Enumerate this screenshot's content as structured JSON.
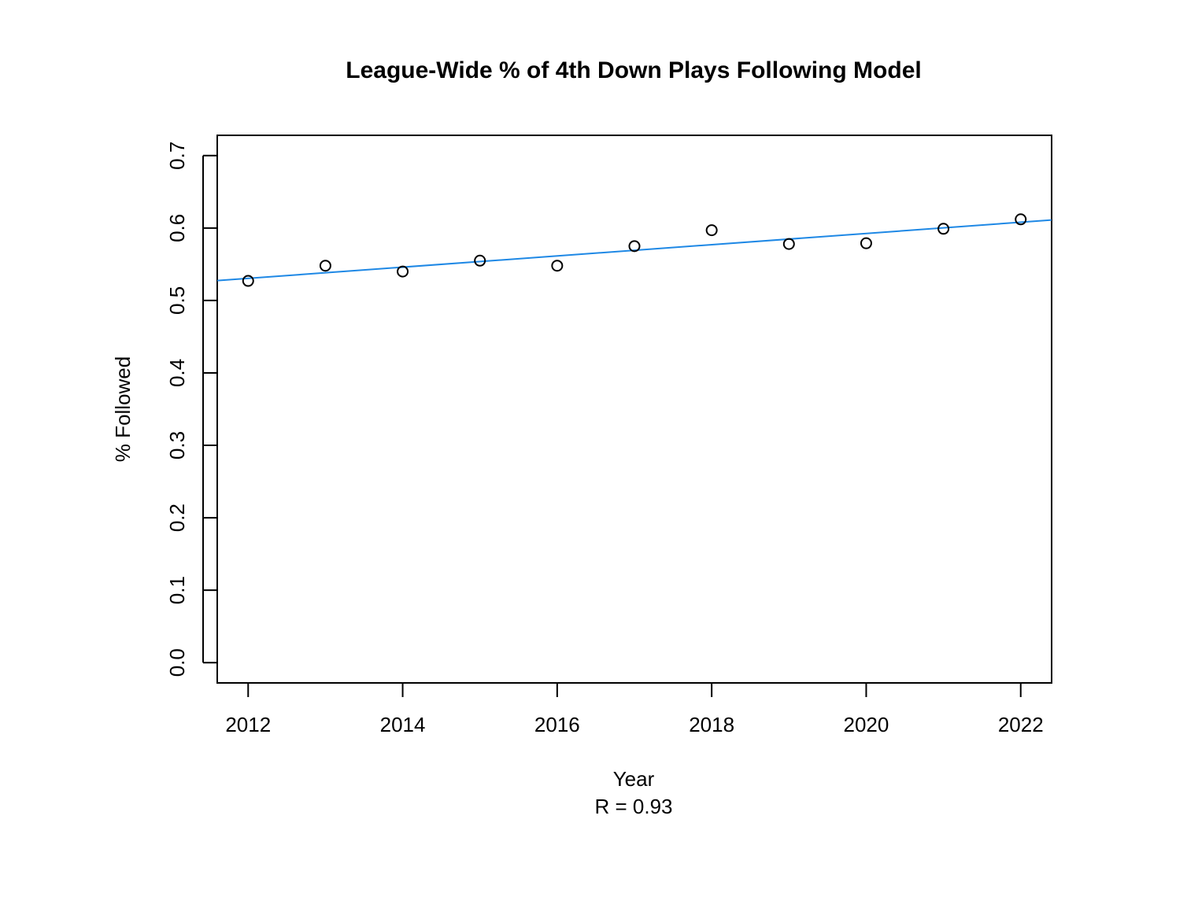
{
  "chart_data": {
    "type": "scatter",
    "title": "League-Wide % of 4th Down Plays Following Model",
    "xlabel": "Year",
    "sublabel": "R = 0.93",
    "ylabel": "% Followed",
    "xlim": [
      2011.6,
      2022.4
    ],
    "ylim": [
      -0.028,
      0.728
    ],
    "x_ticks": [
      2012,
      2014,
      2016,
      2018,
      2020,
      2022
    ],
    "y_ticks": [
      0.0,
      0.1,
      0.2,
      0.3,
      0.4,
      0.5,
      0.6,
      0.7
    ],
    "y_tick_labels": [
      "0.0",
      "0.1",
      "0.2",
      "0.3",
      "0.4",
      "0.5",
      "0.6",
      "0.7"
    ],
    "grid": false,
    "series": [
      {
        "marker": "open-circle",
        "color": "#000000",
        "x": [
          2012,
          2013,
          2014,
          2015,
          2016,
          2017,
          2018,
          2019,
          2020,
          2021,
          2022
        ],
        "y": [
          0.527,
          0.548,
          0.54,
          0.555,
          0.548,
          0.575,
          0.597,
          0.578,
          0.579,
          0.599,
          0.612
        ]
      }
    ],
    "trend_line": {
      "type": "linear",
      "color": "#1E88E5",
      "intercept_at_2012": 0.5305,
      "slope_per_year": 0.00775
    }
  }
}
